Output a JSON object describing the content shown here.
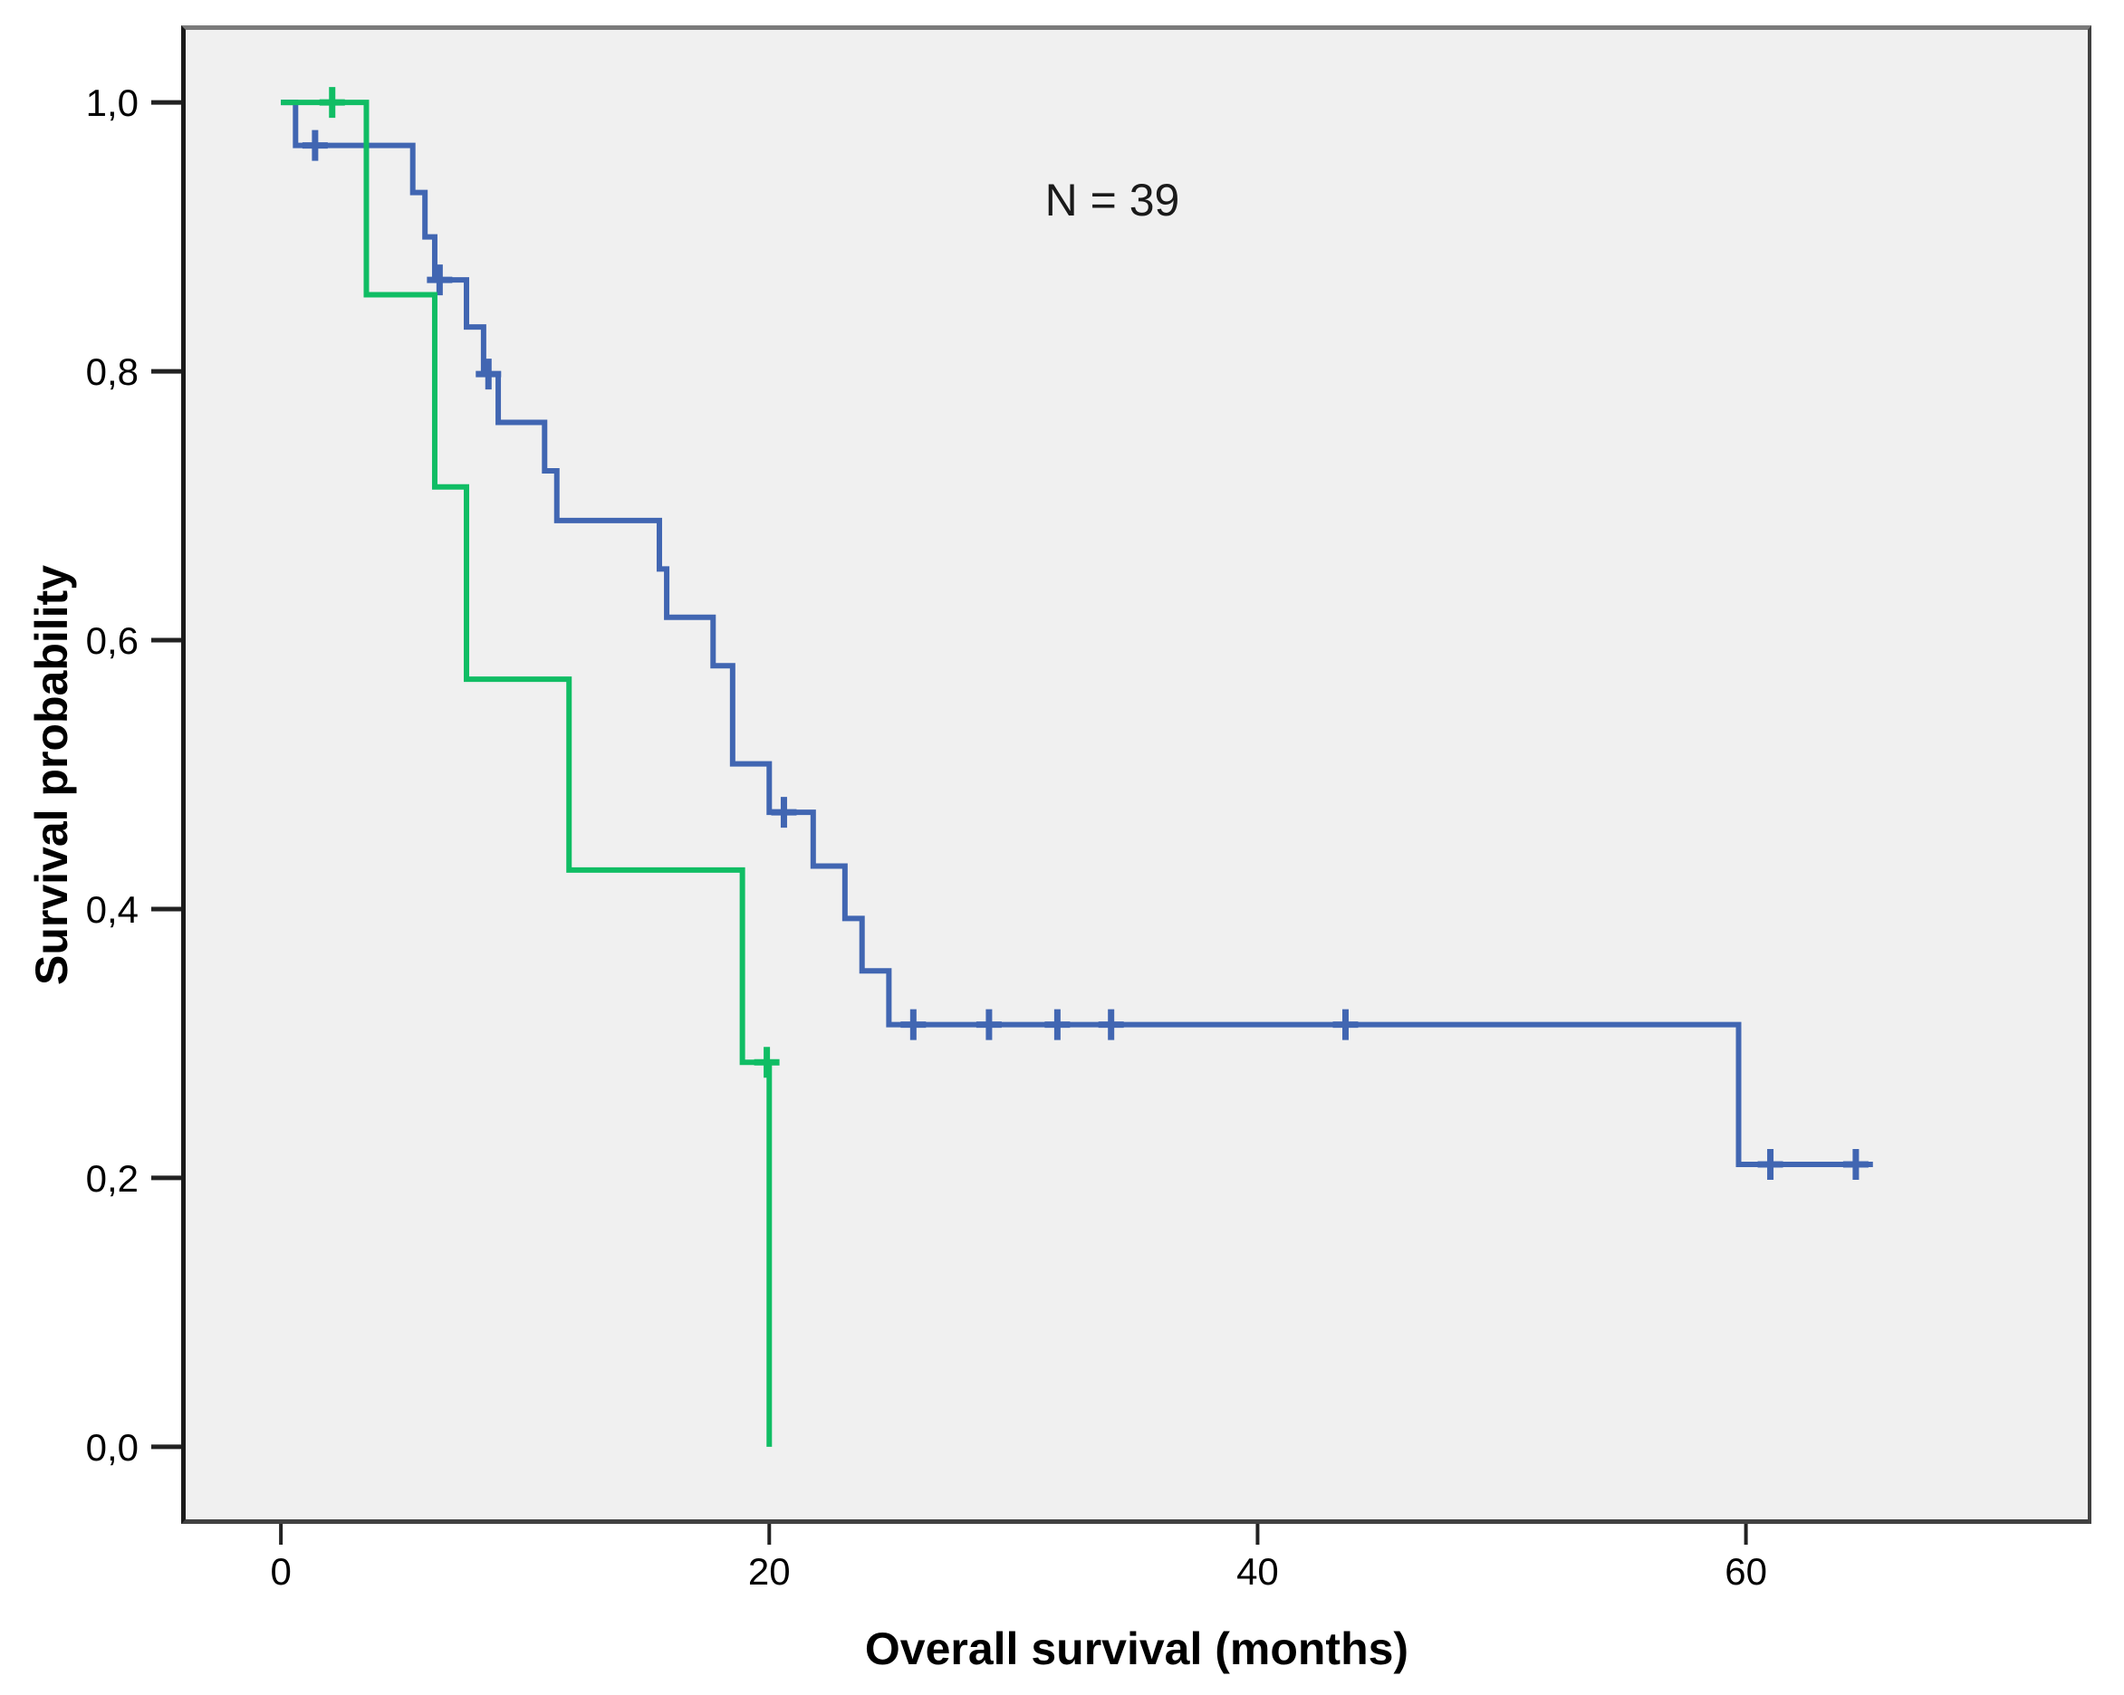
{
  "chart_data": {
    "type": "line",
    "subtype": "kaplan-meier-step",
    "title": "",
    "annotation": "N = 39",
    "xlabel": "Overall survival (months)",
    "ylabel": "Survival probability",
    "xlim": [
      -3.9,
      74.0
    ],
    "ylim": [
      -0.054,
      1.054
    ],
    "grid": false,
    "legend": "none",
    "x_ticks": [
      {
        "v": 0,
        "label": "0"
      },
      {
        "v": 20,
        "label": "20"
      },
      {
        "v": 40,
        "label": "40"
      },
      {
        "v": 60,
        "label": "60"
      }
    ],
    "y_ticks": [
      {
        "v": 1.0,
        "label": "1,0"
      },
      {
        "v": 0.8,
        "label": "0,8"
      },
      {
        "v": 0.6,
        "label": "0,6"
      },
      {
        "v": 0.4,
        "label": "0,4"
      },
      {
        "v": 0.2,
        "label": "0,2"
      },
      {
        "v": 0.0,
        "label": "0,0"
      }
    ],
    "colors": {
      "plot_bg": "#f0f0f0",
      "border_top": "#7b7b7b",
      "border_dark": "#414141",
      "axis_line": "#1a1a1a",
      "tick": "#222222",
      "text": "#000000"
    },
    "series": [
      {
        "id": "blue",
        "color": "#4166b2",
        "steps": [
          [
            0,
            1.0
          ],
          [
            0.6,
            0.968
          ],
          [
            5.4,
            0.933
          ],
          [
            5.9,
            0.9
          ],
          [
            6.3,
            0.868
          ],
          [
            7.6,
            0.833
          ],
          [
            8.3,
            0.798
          ],
          [
            8.9,
            0.762
          ],
          [
            10.8,
            0.726
          ],
          [
            11.3,
            0.689
          ],
          [
            15.5,
            0.653
          ],
          [
            15.8,
            0.617
          ],
          [
            17.7,
            0.581
          ],
          [
            18.5,
            0.508
          ],
          [
            20.0,
            0.472
          ],
          [
            21.8,
            0.432
          ],
          [
            23.1,
            0.393
          ],
          [
            23.8,
            0.354
          ],
          [
            24.9,
            0.314
          ],
          [
            59.7,
            0.21
          ]
        ],
        "end": 65.2,
        "censors": [
          [
            1.4,
            0.968
          ],
          [
            6.5,
            0.868
          ],
          [
            8.5,
            0.798
          ],
          [
            20.6,
            0.472
          ],
          [
            25.9,
            0.314
          ],
          [
            29.0,
            0.314
          ],
          [
            31.8,
            0.314
          ],
          [
            34.0,
            0.314
          ],
          [
            43.6,
            0.314
          ],
          [
            61.0,
            0.21
          ],
          [
            64.5,
            0.21
          ]
        ]
      },
      {
        "id": "green",
        "color": "#10bd64",
        "steps": [
          [
            0,
            1.0
          ],
          [
            3.5,
            0.857
          ],
          [
            6.3,
            0.714
          ],
          [
            7.6,
            0.571
          ],
          [
            11.8,
            0.429
          ],
          [
            18.9,
            0.286
          ],
          [
            20.0,
            0.0
          ]
        ],
        "end": 20.0,
        "censors": [
          [
            2.1,
            1.0
          ],
          [
            19.9,
            0.286
          ]
        ]
      }
    ]
  }
}
